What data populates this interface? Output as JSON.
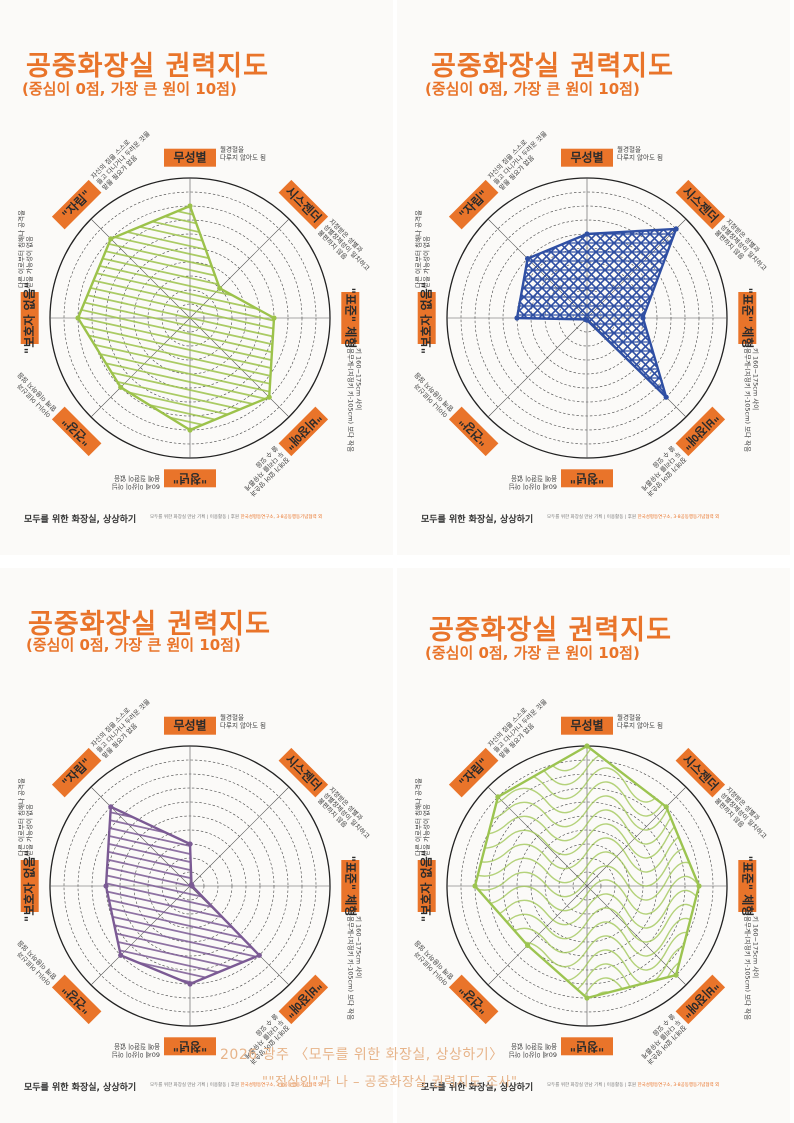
{
  "panels": [
    {
      "title": "공중화장실 권력지도",
      "subtitle": "(중심이 0점, 가장 큰 원이 10점)",
      "color": "#9cc24a",
      "values": [
        8,
        3,
        6,
        8,
        8,
        7,
        8,
        8
      ],
      "fill": "hatch"
    },
    {
      "title": "공중화장실 권력지도",
      "subtitle": "(중심이 0점, 가장 큰 원이 10점)",
      "color": "#2f4fa3",
      "values": [
        6,
        9,
        4,
        8,
        0,
        0,
        5,
        6
      ],
      "fill": "mesh"
    },
    {
      "title": "공중화장실 권력지도",
      "subtitle": "(중심이 0점, 가장 큰 원이 10점)",
      "color": "#7b5a94",
      "values": [
        3,
        0,
        0,
        7,
        7,
        7,
        6,
        8
      ],
      "fill": "hatch"
    },
    {
      "title": "공중화장실 권력지도",
      "subtitle": "(중심이 0점, 가장 큰 원이 10점)",
      "color": "#9cc450",
      "values": [
        10,
        8,
        8,
        9,
        8,
        6,
        8,
        9
      ],
      "fill": "squiggle"
    }
  ],
  "axes": [
    {
      "label": "무성별",
      "desc": [
        "월경혈을",
        "다루지 않아도 됨"
      ]
    },
    {
      "label": "시스젠더",
      "desc": [
        "지정받은 성별과",
        "성별정체성이 일치하고",
        "불편하지 않음"
      ]
    },
    {
      "label": "\"표준\" 체형",
      "desc": [
        "키 160~175cm 사이",
        "몸무게-(지정키 키-105cm) 보다 작음"
      ]
    },
    {
      "label": "\"비장애\"",
      "desc": [
        "장애가 없어 양손과",
        "두 다리를 자유롭게",
        "쓸 수 있음"
      ]
    },
    {
      "label": "\"청년\"",
      "desc": [
        "60세 이상이 아님",
        "몸에 질환이 없음"
      ]
    },
    {
      "label": "\"건강\"",
      "desc": [
        "아이나 어르신과",
        "함께 이용하지 않음"
      ]
    },
    {
      "label": "\"보호자 없음\"",
      "desc": [
        "다른 이로부터 침해나 공격을",
        "받을 가능성이 없음"
      ]
    },
    {
      "label": "\"자립\"",
      "desc": [
        "자신의 짐을 스스로",
        "들고 다니거나 두려운 것을",
        "맡을 필요가 없음"
      ]
    }
  ],
  "footer": {
    "brand_main": "모두를 위한 화장실, 상상하기",
    "credits": "모두를 위한 화장실 만남 기획 | 이용활동 | 후원",
    "credits_org": "한국성평등연구소, 3·8공동행동기념협력 외"
  },
  "caption": {
    "line1": "2026 광주 〈모두를 위한 화장실, 상상하기〉",
    "line2": "\"\"정상인\"과 나 – 공중화장실 권력지도 조사\""
  }
}
